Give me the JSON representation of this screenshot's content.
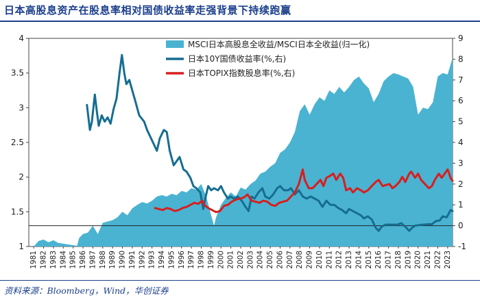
{
  "title": "日本高股息资产在股息率相对国债收益率走强背景下持续跑赢",
  "source": "资料来源：Bloomberg，Wind，华创证券",
  "colors": {
    "area": "#4ab3d1",
    "bond": "#156d91",
    "dividend": "#d81e1e",
    "title": "#1b3f8b"
  },
  "chart_data": {
    "type": "area+line",
    "title": "日本高股息资产在股息率相对国债收益率走强背景下持续跑赢",
    "xlabel": "",
    "x_tick_labels": [
      "1981",
      "1982",
      "1983",
      "1984",
      "1985",
      "1986",
      "1987",
      "1988",
      "1989",
      "1990",
      "1991",
      "1992",
      "1993",
      "1994",
      "1995",
      "1996",
      "1997",
      "1998",
      "1999",
      "2000",
      "2001",
      "2002",
      "2003",
      "2004",
      "2005",
      "2006",
      "2007",
      "2008",
      "2009",
      "2010",
      "2011",
      "2012",
      "2013",
      "2014",
      "2015",
      "2016",
      "2017",
      "2018",
      "2019",
      "2020",
      "2021",
      "2022",
      "2023"
    ],
    "xlim": [
      1981,
      2024
    ],
    "left_axis": {
      "ylim": [
        1,
        4
      ],
      "ticks": [
        "1",
        "1.5",
        "2",
        "2.5",
        "3",
        "3.5",
        "4"
      ]
    },
    "right_axis": {
      "ylim": [
        -1,
        9
      ],
      "ticks": [
        "-1",
        "0",
        "1",
        "2",
        "3",
        "4",
        "5",
        "6",
        "7",
        "8",
        "9"
      ]
    },
    "series": [
      {
        "name": "MSCI日本高股息全收益/MSCI日本全收益(归一化)",
        "kind": "area",
        "axis": "left",
        "points": [
          [
            1981.5,
            1.0
          ],
          [
            1982.0,
            1.08
          ],
          [
            1982.5,
            1.1
          ],
          [
            1983.0,
            1.06
          ],
          [
            1983.5,
            1.09
          ],
          [
            1984.0,
            1.05
          ],
          [
            1984.5,
            1.04
          ],
          [
            1985.0,
            1.03
          ],
          [
            1985.5,
            1.02
          ],
          [
            1985.9,
            1.01
          ],
          [
            1986.1,
            1.12
          ],
          [
            1986.5,
            1.18
          ],
          [
            1987.0,
            1.2
          ],
          [
            1987.5,
            1.3
          ],
          [
            1988.0,
            1.18
          ],
          [
            1988.5,
            1.34
          ],
          [
            1989.0,
            1.36
          ],
          [
            1989.5,
            1.38
          ],
          [
            1990.0,
            1.42
          ],
          [
            1990.5,
            1.5
          ],
          [
            1991.0,
            1.45
          ],
          [
            1991.5,
            1.55
          ],
          [
            1992.0,
            1.6
          ],
          [
            1992.5,
            1.64
          ],
          [
            1993.0,
            1.62
          ],
          [
            1993.5,
            1.66
          ],
          [
            1994.0,
            1.72
          ],
          [
            1994.5,
            1.74
          ],
          [
            1995.0,
            1.72
          ],
          [
            1995.5,
            1.76
          ],
          [
            1996.0,
            1.74
          ],
          [
            1996.5,
            1.8
          ],
          [
            1997.0,
            1.78
          ],
          [
            1997.5,
            1.84
          ],
          [
            1998.0,
            1.82
          ],
          [
            1998.5,
            1.9
          ],
          [
            1999.0,
            1.72
          ],
          [
            1999.5,
            1.45
          ],
          [
            1999.8,
            1.3
          ],
          [
            2000.0,
            1.42
          ],
          [
            2000.5,
            1.6
          ],
          [
            2001.0,
            1.7
          ],
          [
            2001.5,
            1.78
          ],
          [
            2002.0,
            1.72
          ],
          [
            2002.5,
            1.85
          ],
          [
            2003.0,
            1.82
          ],
          [
            2003.5,
            1.9
          ],
          [
            2004.0,
            1.95
          ],
          [
            2004.5,
            2.05
          ],
          [
            2005.0,
            2.08
          ],
          [
            2005.5,
            2.15
          ],
          [
            2006.0,
            2.2
          ],
          [
            2006.5,
            2.35
          ],
          [
            2007.0,
            2.4
          ],
          [
            2007.5,
            2.5
          ],
          [
            2008.0,
            2.65
          ],
          [
            2008.5,
            2.95
          ],
          [
            2009.0,
            3.05
          ],
          [
            2009.5,
            2.9
          ],
          [
            2010.0,
            3.05
          ],
          [
            2010.5,
            3.15
          ],
          [
            2011.0,
            3.1
          ],
          [
            2011.5,
            3.25
          ],
          [
            2012.0,
            3.2
          ],
          [
            2012.5,
            3.3
          ],
          [
            2013.0,
            3.22
          ],
          [
            2013.5,
            3.3
          ],
          [
            2014.0,
            3.4
          ],
          [
            2014.5,
            3.45
          ],
          [
            2015.0,
            3.35
          ],
          [
            2015.5,
            3.28
          ],
          [
            2016.0,
            3.08
          ],
          [
            2016.5,
            3.2
          ],
          [
            2017.0,
            3.38
          ],
          [
            2017.5,
            3.45
          ],
          [
            2018.0,
            3.5
          ],
          [
            2018.5,
            3.48
          ],
          [
            2019.0,
            3.45
          ],
          [
            2019.5,
            3.42
          ],
          [
            2020.0,
            3.3
          ],
          [
            2020.5,
            2.9
          ],
          [
            2021.0,
            3.0
          ],
          [
            2021.5,
            2.98
          ],
          [
            2022.0,
            3.08
          ],
          [
            2022.5,
            3.45
          ],
          [
            2023.0,
            3.5
          ],
          [
            2023.5,
            3.48
          ],
          [
            2024.0,
            3.72
          ]
        ]
      },
      {
        "name": "日本10Y国债收益率(%,右)",
        "kind": "line",
        "axis": "right",
        "points": [
          [
            1986.9,
            5.8
          ],
          [
            1987.2,
            4.6
          ],
          [
            1987.4,
            5.0
          ],
          [
            1987.7,
            6.3
          ],
          [
            1987.9,
            5.5
          ],
          [
            1988.1,
            4.8
          ],
          [
            1988.4,
            5.3
          ],
          [
            1988.7,
            5.0
          ],
          [
            1989.0,
            5.2
          ],
          [
            1989.3,
            4.9
          ],
          [
            1989.6,
            5.6
          ],
          [
            1989.9,
            6.1
          ],
          [
            1990.2,
            7.3
          ],
          [
            1990.45,
            8.2
          ],
          [
            1990.7,
            7.3
          ],
          [
            1990.9,
            6.8
          ],
          [
            1991.2,
            7.0
          ],
          [
            1991.5,
            6.5
          ],
          [
            1991.8,
            6.0
          ],
          [
            1992.2,
            5.3
          ],
          [
            1992.7,
            5.0
          ],
          [
            1993.0,
            4.6
          ],
          [
            1993.4,
            4.2
          ],
          [
            1993.7,
            3.9
          ],
          [
            1994.0,
            3.6
          ],
          [
            1994.3,
            4.2
          ],
          [
            1994.7,
            4.6
          ],
          [
            1995.0,
            4.5
          ],
          [
            1995.3,
            3.6
          ],
          [
            1995.7,
            2.9
          ],
          [
            1996.0,
            3.1
          ],
          [
            1996.3,
            3.3
          ],
          [
            1996.7,
            2.7
          ],
          [
            1997.0,
            2.6
          ],
          [
            1997.4,
            2.3
          ],
          [
            1997.7,
            1.9
          ],
          [
            1998.0,
            1.8
          ],
          [
            1998.4,
            1.6
          ],
          [
            1998.7,
            0.8
          ],
          [
            1998.9,
            1.3
          ],
          [
            1999.2,
            1.9
          ],
          [
            1999.5,
            1.7
          ],
          [
            1999.8,
            1.8
          ],
          [
            2000.2,
            1.7
          ],
          [
            2000.5,
            1.9
          ],
          [
            2000.8,
            1.6
          ],
          [
            2001.2,
            1.3
          ],
          [
            2001.5,
            1.4
          ],
          [
            2001.8,
            1.3
          ],
          [
            2002.2,
            1.4
          ],
          [
            2002.6,
            1.2
          ],
          [
            2003.0,
            0.9
          ],
          [
            2003.3,
            0.7
          ],
          [
            2003.6,
            1.4
          ],
          [
            2003.9,
            1.3
          ],
          [
            2004.3,
            1.6
          ],
          [
            2004.7,
            1.8
          ],
          [
            2005.0,
            1.4
          ],
          [
            2005.4,
            1.3
          ],
          [
            2005.8,
            1.5
          ],
          [
            2006.2,
            1.8
          ],
          [
            2006.5,
            1.9
          ],
          [
            2006.9,
            1.7
          ],
          [
            2007.3,
            1.7
          ],
          [
            2007.6,
            1.8
          ],
          [
            2008.0,
            1.5
          ],
          [
            2008.4,
            1.7
          ],
          [
            2008.8,
            1.4
          ],
          [
            2009.2,
            1.3
          ],
          [
            2009.6,
            1.4
          ],
          [
            2010.0,
            1.3
          ],
          [
            2010.4,
            1.2
          ],
          [
            2010.8,
            0.9
          ],
          [
            2011.2,
            1.2
          ],
          [
            2011.6,
            1.0
          ],
          [
            2012.0,
            1.0
          ],
          [
            2012.4,
            0.85
          ],
          [
            2012.8,
            0.75
          ],
          [
            2013.2,
            0.6
          ],
          [
            2013.5,
            0.8
          ],
          [
            2013.9,
            0.7
          ],
          [
            2014.3,
            0.6
          ],
          [
            2014.7,
            0.5
          ],
          [
            2015.0,
            0.35
          ],
          [
            2015.4,
            0.45
          ],
          [
            2015.8,
            0.3
          ],
          [
            2016.2,
            -0.1
          ],
          [
            2016.5,
            -0.25
          ],
          [
            2016.8,
            -0.05
          ],
          [
            2017.2,
            0.05
          ],
          [
            2017.6,
            0.05
          ],
          [
            2018.0,
            0.05
          ],
          [
            2018.4,
            0.05
          ],
          [
            2018.8,
            0.12
          ],
          [
            2019.2,
            -0.05
          ],
          [
            2019.6,
            -0.25
          ],
          [
            2019.9,
            -0.1
          ],
          [
            2020.2,
            0.0
          ],
          [
            2020.6,
            0.03
          ],
          [
            2021.0,
            0.05
          ],
          [
            2021.5,
            0.07
          ],
          [
            2021.9,
            0.07
          ],
          [
            2022.3,
            0.22
          ],
          [
            2022.7,
            0.25
          ],
          [
            2023.0,
            0.45
          ],
          [
            2023.4,
            0.4
          ],
          [
            2023.8,
            0.75
          ],
          [
            2024.0,
            0.7
          ]
        ]
      },
      {
        "name": "日本TOPIX指数股息率(%,右)",
        "kind": "line",
        "axis": "right",
        "points": [
          [
            1993.8,
            0.85
          ],
          [
            1994.2,
            0.8
          ],
          [
            1994.6,
            0.75
          ],
          [
            1995.0,
            0.85
          ],
          [
            1995.4,
            0.8
          ],
          [
            1995.8,
            0.7
          ],
          [
            1996.2,
            0.75
          ],
          [
            1996.6,
            0.85
          ],
          [
            1997.0,
            0.9
          ],
          [
            1997.4,
            1.0
          ],
          [
            1997.8,
            1.1
          ],
          [
            1998.2,
            1.05
          ],
          [
            1998.6,
            1.2
          ],
          [
            1998.9,
            0.95
          ],
          [
            1999.2,
            0.85
          ],
          [
            1999.6,
            0.75
          ],
          [
            2000.0,
            0.65
          ],
          [
            2000.4,
            0.7
          ],
          [
            2000.8,
            0.95
          ],
          [
            2001.2,
            1.0
          ],
          [
            2001.6,
            1.15
          ],
          [
            2002.0,
            1.25
          ],
          [
            2002.4,
            1.3
          ],
          [
            2002.8,
            1.35
          ],
          [
            2003.2,
            1.5
          ],
          [
            2003.6,
            1.2
          ],
          [
            2004.0,
            1.15
          ],
          [
            2004.4,
            1.1
          ],
          [
            2004.8,
            1.2
          ],
          [
            2005.2,
            1.15
          ],
          [
            2005.6,
            1.0
          ],
          [
            2006.0,
            0.95
          ],
          [
            2006.4,
            1.1
          ],
          [
            2006.8,
            1.15
          ],
          [
            2007.2,
            1.2
          ],
          [
            2007.6,
            1.4
          ],
          [
            2008.0,
            1.6
          ],
          [
            2008.4,
            2.0
          ],
          [
            2008.8,
            2.7
          ],
          [
            2009.0,
            2.2
          ],
          [
            2009.4,
            1.8
          ],
          [
            2009.8,
            1.8
          ],
          [
            2010.2,
            2.0
          ],
          [
            2010.6,
            2.2
          ],
          [
            2010.9,
            1.9
          ],
          [
            2011.2,
            2.3
          ],
          [
            2011.6,
            2.4
          ],
          [
            2011.9,
            2.5
          ],
          [
            2012.2,
            2.2
          ],
          [
            2012.6,
            2.5
          ],
          [
            2012.9,
            2.3
          ],
          [
            2013.2,
            1.7
          ],
          [
            2013.6,
            1.8
          ],
          [
            2013.9,
            1.6
          ],
          [
            2014.3,
            1.8
          ],
          [
            2014.7,
            1.7
          ],
          [
            2015.0,
            1.6
          ],
          [
            2015.4,
            1.7
          ],
          [
            2015.8,
            1.9
          ],
          [
            2016.2,
            2.1
          ],
          [
            2016.5,
            2.2
          ],
          [
            2016.9,
            1.9
          ],
          [
            2017.2,
            1.95
          ],
          [
            2017.6,
            2.0
          ],
          [
            2017.9,
            1.8
          ],
          [
            2018.2,
            1.9
          ],
          [
            2018.6,
            2.1
          ],
          [
            2018.9,
            2.35
          ],
          [
            2019.2,
            2.1
          ],
          [
            2019.6,
            2.5
          ],
          [
            2019.8,
            2.6
          ],
          [
            2020.2,
            2.3
          ],
          [
            2020.5,
            2.5
          ],
          [
            2020.8,
            2.2
          ],
          [
            2021.2,
            2.0
          ],
          [
            2021.6,
            1.8
          ],
          [
            2021.9,
            1.9
          ],
          [
            2022.2,
            2.2
          ],
          [
            2022.6,
            2.5
          ],
          [
            2022.9,
            2.3
          ],
          [
            2023.2,
            2.5
          ],
          [
            2023.5,
            2.7
          ],
          [
            2023.8,
            2.3
          ],
          [
            2024.0,
            2.15
          ]
        ]
      }
    ],
    "legend": {
      "placement": "top-center",
      "items": [
        {
          "label": "MSCI日本高股息全收益/MSCI日本全收益(归一化)",
          "kind": "area"
        },
        {
          "label": "日本10Y国债收益率(%,右)",
          "kind": "line"
        },
        {
          "label": "日本TOPIX指数股息率(%,右)",
          "kind": "line"
        }
      ]
    }
  }
}
